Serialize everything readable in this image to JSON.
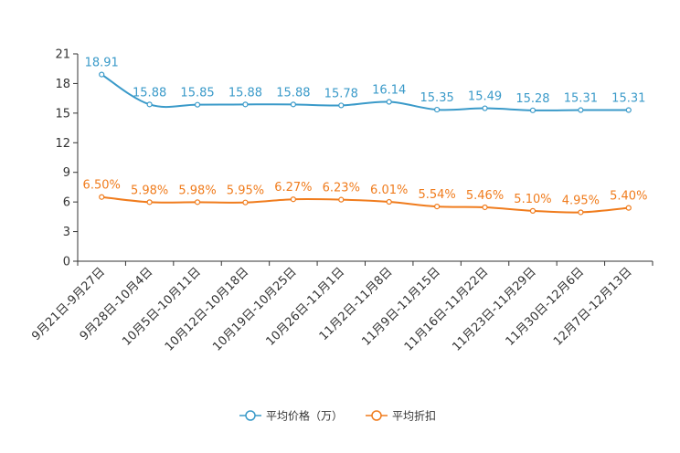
{
  "chart_data": {
    "type": "line",
    "title": "",
    "xlabel": "",
    "ylabel": "",
    "ylim": [
      0,
      21
    ],
    "yticks": [
      0,
      3,
      6,
      9,
      12,
      15,
      18,
      21
    ],
    "grid": false,
    "legend_position": "bottom-center",
    "categories": [
      "9月21日-9月27日",
      "9月28日-10月4日",
      "10月5日-10月11日",
      "10月12日-10月18日",
      "10月19日-10月25日",
      "10月26日-11月1日",
      "11月2日-11月8日",
      "11月9日-11月15日",
      "11月16日-11月22日",
      "11月23日-11月29日",
      "11月30日-12月6日",
      "12月7日-12月13日"
    ],
    "series": [
      {
        "name": "平均价格（万）",
        "color": "#3a9ac9",
        "values": [
          18.91,
          15.88,
          15.85,
          15.88,
          15.88,
          15.78,
          16.14,
          15.35,
          15.49,
          15.28,
          15.31,
          15.31
        ],
        "labels": [
          "18.91",
          "15.88",
          "15.85",
          "15.88",
          "15.88",
          "15.78",
          "16.14",
          "15.35",
          "15.49",
          "15.28",
          "15.31",
          "15.31"
        ]
      },
      {
        "name": "平均折扣",
        "color": "#f07c1d",
        "values": [
          6.5,
          5.98,
          5.98,
          5.95,
          6.27,
          6.23,
          6.01,
          5.54,
          5.46,
          5.1,
          4.95,
          5.4
        ],
        "labels": [
          "6.50%",
          "5.98%",
          "5.98%",
          "5.95%",
          "6.27%",
          "6.23%",
          "6.01%",
          "5.54%",
          "5.46%",
          "5.10%",
          "4.95%",
          "5.40%"
        ]
      }
    ]
  }
}
